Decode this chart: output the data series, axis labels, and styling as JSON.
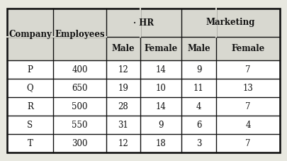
{
  "companies": [
    "P",
    "Q",
    "R",
    "S",
    "T"
  ],
  "employees": [
    400,
    650,
    500,
    550,
    300
  ],
  "hr_male": [
    12,
    19,
    28,
    31,
    12
  ],
  "hr_female": [
    14,
    10,
    14,
    9,
    18
  ],
  "mkt_male": [
    9,
    11,
    4,
    6,
    3
  ],
  "mkt_female": [
    7,
    13,
    7,
    4,
    7
  ],
  "bg_color": "#e8e8e0",
  "cell_color": "#ffffff",
  "header_color": "#d8d8d0",
  "line_color": "#111111",
  "text_color": "#111111",
  "font_size": 8.5,
  "header_font_size": 8.5
}
